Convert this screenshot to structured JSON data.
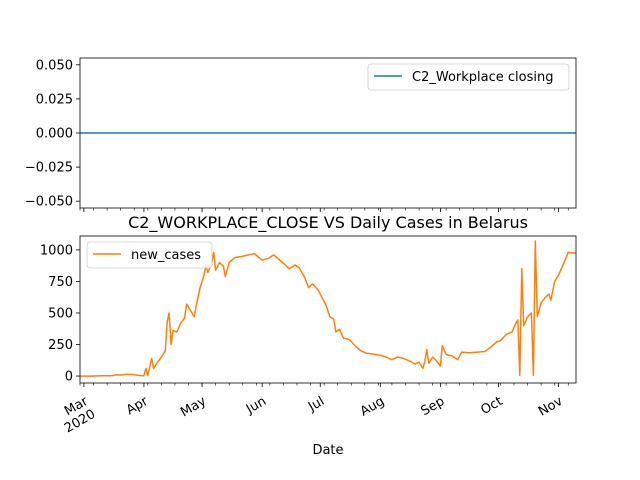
{
  "chart_data": [
    {
      "type": "line",
      "title": "",
      "xlabel": "",
      "ylabel": "",
      "ylim": [
        -0.055,
        0.055
      ],
      "yticks": [
        -0.05,
        -0.025,
        0.0,
        0.025,
        0.05
      ],
      "ytick_labels": [
        "−0.050",
        "−0.025",
        "0.000",
        "0.025",
        "0.050"
      ],
      "legend": "top-right",
      "series": [
        {
          "name": "C2_Workplace closing",
          "color": "#1f77b4",
          "constant": 0.0
        }
      ]
    },
    {
      "type": "line",
      "title": "C2_WORKPLACE_CLOSE VS Daily Cases in Belarus",
      "xlabel": "Date",
      "ylabel": "",
      "ylim": [
        -55,
        1110
      ],
      "yticks": [
        0,
        250,
        500,
        750,
        1000
      ],
      "ytick_labels": [
        "0",
        "250",
        "500",
        "750",
        "1000"
      ],
      "xticks": [
        {
          "date": "2020-03-01",
          "label": "Mar",
          "sublabel": "2020"
        },
        {
          "date": "2020-04-01",
          "label": "Apr"
        },
        {
          "date": "2020-05-01",
          "label": "May"
        },
        {
          "date": "2020-06-01",
          "label": "Jun"
        },
        {
          "date": "2020-07-01",
          "label": "Jul"
        },
        {
          "date": "2020-08-01",
          "label": "Aug"
        },
        {
          "date": "2020-09-01",
          "label": "Sep"
        },
        {
          "date": "2020-10-01",
          "label": "Oct"
        },
        {
          "date": "2020-11-01",
          "label": "Nov"
        }
      ],
      "legend": "top-left",
      "series": [
        {
          "name": "new_cases",
          "color": "#ff7f0e",
          "points": [
            [
              "2020-02-28",
              0
            ],
            [
              "2020-03-05",
              0
            ],
            [
              "2020-03-10",
              2
            ],
            [
              "2020-03-15",
              3
            ],
            [
              "2020-03-18",
              10
            ],
            [
              "2020-03-20",
              8
            ],
            [
              "2020-03-23",
              15
            ],
            [
              "2020-03-26",
              12
            ],
            [
              "2020-03-29",
              5
            ],
            [
              "2020-04-01",
              3
            ],
            [
              "2020-04-02",
              60
            ],
            [
              "2020-04-03",
              5
            ],
            [
              "2020-04-05",
              140
            ],
            [
              "2020-04-06",
              60
            ],
            [
              "2020-04-08",
              110
            ],
            [
              "2020-04-10",
              150
            ],
            [
              "2020-04-12",
              200
            ],
            [
              "2020-04-13",
              430
            ],
            [
              "2020-04-14",
              500
            ],
            [
              "2020-04-15",
              250
            ],
            [
              "2020-04-16",
              360
            ],
            [
              "2020-04-18",
              350
            ],
            [
              "2020-04-20",
              420
            ],
            [
              "2020-04-22",
              460
            ],
            [
              "2020-04-23",
              570
            ],
            [
              "2020-04-25",
              520
            ],
            [
              "2020-04-27",
              470
            ],
            [
              "2020-04-28",
              560
            ],
            [
              "2020-04-30",
              700
            ],
            [
              "2020-05-02",
              800
            ],
            [
              "2020-05-03",
              870
            ],
            [
              "2020-05-04",
              820
            ],
            [
              "2020-05-06",
              900
            ],
            [
              "2020-05-07",
              980
            ],
            [
              "2020-05-08",
              840
            ],
            [
              "2020-05-10",
              900
            ],
            [
              "2020-05-12",
              870
            ],
            [
              "2020-05-13",
              790
            ],
            [
              "2020-05-15",
              900
            ],
            [
              "2020-05-18",
              940
            ],
            [
              "2020-05-22",
              950
            ],
            [
              "2020-05-25",
              960
            ],
            [
              "2020-05-28",
              970
            ],
            [
              "2020-06-01",
              920
            ],
            [
              "2020-06-04",
              930
            ],
            [
              "2020-06-07",
              960
            ],
            [
              "2020-06-10",
              920
            ],
            [
              "2020-06-13",
              880
            ],
            [
              "2020-06-15",
              850
            ],
            [
              "2020-06-18",
              880
            ],
            [
              "2020-06-20",
              860
            ],
            [
              "2020-06-23",
              780
            ],
            [
              "2020-06-25",
              700
            ],
            [
              "2020-06-27",
              730
            ],
            [
              "2020-06-30",
              680
            ],
            [
              "2020-07-02",
              620
            ],
            [
              "2020-07-04",
              560
            ],
            [
              "2020-07-06",
              470
            ],
            [
              "2020-07-08",
              450
            ],
            [
              "2020-07-09",
              350
            ],
            [
              "2020-07-11",
              370
            ],
            [
              "2020-07-13",
              300
            ],
            [
              "2020-07-16",
              290
            ],
            [
              "2020-07-19",
              240
            ],
            [
              "2020-07-22",
              200
            ],
            [
              "2020-07-25",
              180
            ],
            [
              "2020-07-28",
              175
            ],
            [
              "2020-08-01",
              165
            ],
            [
              "2020-08-04",
              150
            ],
            [
              "2020-08-07",
              130
            ],
            [
              "2020-08-10",
              150
            ],
            [
              "2020-08-13",
              140
            ],
            [
              "2020-08-16",
              120
            ],
            [
              "2020-08-19",
              95
            ],
            [
              "2020-08-21",
              110
            ],
            [
              "2020-08-23",
              60
            ],
            [
              "2020-08-24",
              120
            ],
            [
              "2020-08-25",
              210
            ],
            [
              "2020-08-26",
              100
            ],
            [
              "2020-08-28",
              150
            ],
            [
              "2020-08-30",
              120
            ],
            [
              "2020-09-01",
              80
            ],
            [
              "2020-09-02",
              240
            ],
            [
              "2020-09-04",
              170
            ],
            [
              "2020-09-07",
              160
            ],
            [
              "2020-09-10",
              130
            ],
            [
              "2020-09-12",
              190
            ],
            [
              "2020-09-16",
              185
            ],
            [
              "2020-09-20",
              190
            ],
            [
              "2020-09-24",
              195
            ],
            [
              "2020-09-27",
              230
            ],
            [
              "2020-09-30",
              270
            ],
            [
              "2020-10-02",
              280
            ],
            [
              "2020-10-05",
              330
            ],
            [
              "2020-10-08",
              350
            ],
            [
              "2020-10-10",
              420
            ],
            [
              "2020-10-11",
              445
            ],
            [
              "2020-10-12",
              5
            ],
            [
              "2020-10-13",
              850
            ],
            [
              "2020-10-14",
              400
            ],
            [
              "2020-10-16",
              470
            ],
            [
              "2020-10-18",
              500
            ],
            [
              "2020-10-19",
              5
            ],
            [
              "2020-10-20",
              1070
            ],
            [
              "2020-10-21",
              470
            ],
            [
              "2020-10-23",
              580
            ],
            [
              "2020-10-25",
              620
            ],
            [
              "2020-10-27",
              650
            ],
            [
              "2020-10-28",
              600
            ],
            [
              "2020-10-30",
              750
            ],
            [
              "2020-11-01",
              800
            ],
            [
              "2020-11-03",
              870
            ],
            [
              "2020-11-06",
              980
            ],
            [
              "2020-11-08",
              975
            ],
            [
              "2020-11-10",
              975
            ]
          ]
        }
      ]
    }
  ]
}
